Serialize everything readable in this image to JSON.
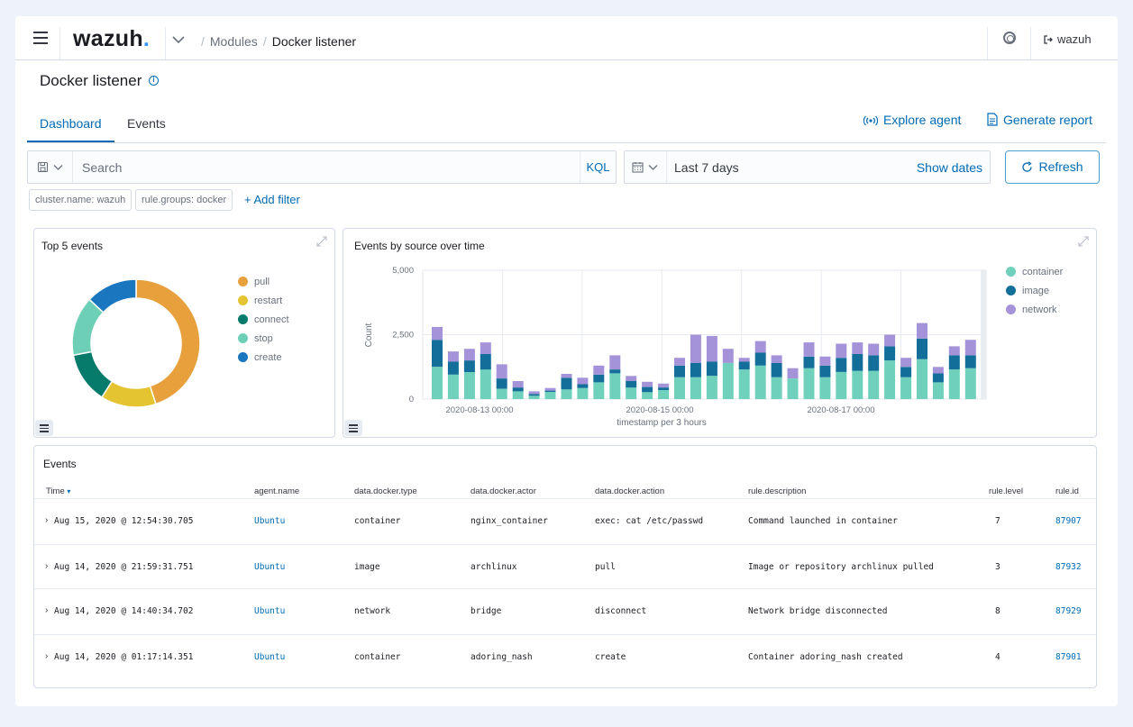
{
  "header": {
    "logo_text": "wazuh",
    "logo_dot": ".",
    "breadcrumb": [
      "Modules",
      "Docker listener"
    ],
    "user": "wazuh"
  },
  "page": {
    "title": "Docker listener",
    "tabs": [
      "Dashboard",
      "Events"
    ],
    "active_tab": "Dashboard",
    "explore_agent": "Explore agent",
    "generate_report": "Generate report"
  },
  "search": {
    "placeholder": "Search",
    "kql": "KQL",
    "date_range": "Last 7 days",
    "show_dates": "Show dates",
    "refresh": "Refresh",
    "filters": [
      "cluster.name: wazuh",
      "rule.groups: docker"
    ],
    "add_filter": "+ Add filter"
  },
  "colors": {
    "pull": "#e7a03b",
    "restart": "#e5c432",
    "connect": "#077b6b",
    "stop": "#6ecfb7",
    "create": "#1b76c0",
    "container": "#6fd1bb",
    "image": "#136f9a",
    "network": "#a493d9"
  },
  "chart_data": [
    {
      "type": "pie",
      "title": "Top 5 events",
      "donut": true,
      "legend_position": "right",
      "labels": [
        "pull",
        "restart",
        "connect",
        "stop",
        "create"
      ],
      "values": [
        45,
        14,
        13,
        15,
        13
      ]
    },
    {
      "type": "bar",
      "stacked": true,
      "title": "Events by source over time",
      "xlabel": "timestamp per 3 hours",
      "ylabel": "Count",
      "ylim": [
        0,
        5000
      ],
      "yticks": [
        "5,000",
        "2,500",
        "0"
      ],
      "xticks": [
        "2020-08-13 00:00",
        "2020-08-15 00:00",
        "2020-08-17 00:00"
      ],
      "legend_position": "right",
      "grid": true,
      "series": [
        {
          "name": "container",
          "values": [
            1250,
            950,
            1050,
            1150,
            400,
            300,
            130,
            280,
            380,
            430,
            650,
            1000,
            450,
            270,
            350,
            850,
            850,
            900,
            1400,
            1150,
            1300,
            850,
            800,
            1200,
            850,
            1050,
            1100,
            1100,
            1500,
            850,
            1550,
            650,
            1150,
            1200
          ]
        },
        {
          "name": "image",
          "values": [
            1050,
            500,
            450,
            600,
            400,
            150,
            70,
            50,
            450,
            150,
            300,
            150,
            250,
            200,
            100,
            450,
            550,
            550,
            0,
            300,
            500,
            550,
            0,
            450,
            450,
            550,
            650,
            600,
            550,
            400,
            800,
            350,
            550,
            500
          ]
        },
        {
          "name": "network",
          "values": [
            500,
            400,
            450,
            450,
            550,
            250,
            100,
            100,
            150,
            250,
            350,
            550,
            200,
            200,
            150,
            300,
            1100,
            1000,
            550,
            150,
            450,
            300,
            400,
            550,
            350,
            550,
            450,
            450,
            450,
            350,
            600,
            250,
            350,
            600
          ]
        }
      ]
    }
  ],
  "events_table": {
    "title": "Events",
    "columns": [
      "Time",
      "agent.name",
      "data.docker.type",
      "data.docker.actor",
      "data.docker.action",
      "rule.description",
      "rule.level",
      "rule.id"
    ],
    "rows": [
      [
        "Aug 15, 2020 @ 12:54:30.705",
        "Ubuntu",
        "container",
        "nginx_container",
        "exec: cat /etc/passwd",
        "Command launched in container",
        "7",
        "87907"
      ],
      [
        "Aug 14, 2020 @ 21:59:31.751",
        "Ubuntu",
        "image",
        "archlinux",
        "pull",
        "Image or repository archlinux pulled",
        "3",
        "87932"
      ],
      [
        "Aug 14, 2020 @ 14:40:34.702",
        "Ubuntu",
        "network",
        "bridge",
        "disconnect",
        "Network bridge disconnected",
        "8",
        "87929"
      ],
      [
        "Aug 14, 2020 @ 01:17:14.351",
        "Ubuntu",
        "container",
        "adoring_nash",
        "create",
        "Container adoring_nash created",
        "4",
        "87901"
      ]
    ]
  }
}
